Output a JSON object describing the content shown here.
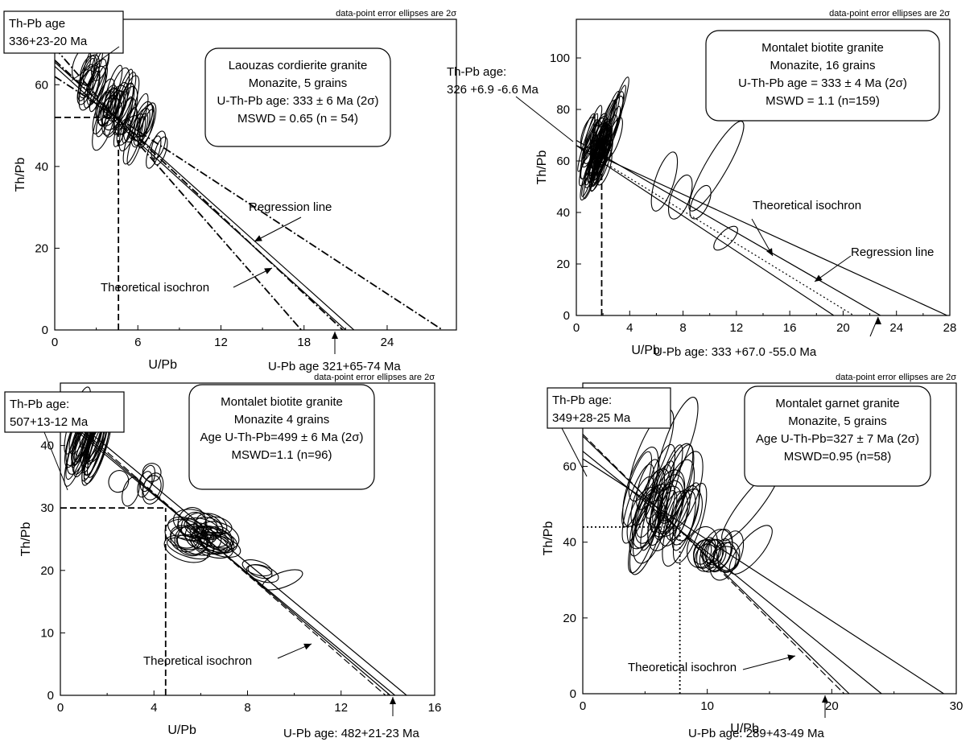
{
  "chart_data": [
    {
      "type": "scatter",
      "ylabel": "Th/Pb",
      "xlabel": "U/Pb",
      "xlim": [
        0,
        29
      ],
      "ylim": [
        0,
        76
      ],
      "xticks": [
        0,
        6,
        12,
        18,
        24
      ],
      "yticks": [
        0,
        20,
        40,
        60
      ],
      "note": "data-point error ellipses are 2σ",
      "info_lines": [
        "Laouzas cordierite granite",
        "Monazite, 5 grains",
        "U-Th-Pb age: 333 ± 6 Ma (2σ)",
        "MSWD = 0.65 (n = 54)"
      ],
      "thpb_label": [
        "Th-Pb age",
        "336+23-20 Ma"
      ],
      "upb_label": "U-Pb age 321+65-74 Ma",
      "line_labels": [
        "Regression line",
        "Theoretical isochron"
      ],
      "lines": [
        {
          "style": "solid",
          "y0": 65.5,
          "xint": 21.6
        },
        {
          "style": "solid",
          "y0": 64.5,
          "xint": 21.0
        },
        {
          "style": "dashdot",
          "y0": 69,
          "xint": 17.8
        },
        {
          "style": "dashdot",
          "y0": 62,
          "xint": 28.0
        },
        {
          "style": "dashdot",
          "y0": 66,
          "xint": 20.8
        }
      ],
      "guides": {
        "style": "dashed",
        "x": 4.6,
        "y": 52
      },
      "clusters": [
        {
          "cx": 2.7,
          "cy": 62,
          "spread_x": 0.8,
          "spread_y": 5,
          "rx": 0.45,
          "ry": 5.5,
          "count": 14
        },
        {
          "cx": 4.5,
          "cy": 55,
          "spread_x": 1.1,
          "spread_y": 6,
          "rx": 0.5,
          "ry": 6,
          "count": 22
        },
        {
          "cx": 5.8,
          "cy": 50,
          "spread_x": 0.9,
          "spread_y": 5,
          "rx": 0.45,
          "ry": 5.5,
          "count": 16
        },
        {
          "cx": 7.3,
          "cy": 44,
          "spread_x": 0.4,
          "spread_y": 2,
          "rx": 0.4,
          "ry": 4.5,
          "count": 3
        }
      ]
    },
    {
      "type": "scatter",
      "ylabel": "Th/Pb",
      "xlabel": "U/Pb",
      "xlim": [
        0,
        28
      ],
      "ylim": [
        0,
        115
      ],
      "xticks": [
        0,
        4,
        8,
        12,
        16,
        20,
        24,
        28
      ],
      "yticks": [
        0,
        20,
        40,
        60,
        80,
        100
      ],
      "note": "data-point error ellipses are 2σ",
      "info_lines": [
        "Montalet biotite granite",
        "Monazite, 16 grains",
        "U-Th-Pb age = 333 ± 4 Ma (2σ)",
        "MSWD = 1.1 (n=159)"
      ],
      "thpb_label": [
        "Th-Pb age:",
        "326 +6.9 -6.6 Ma"
      ],
      "upb_label": "U-Pb age: 333 +67.0 -55.0 Ma",
      "line_labels": [
        "Theoretical isochron",
        "Regression line"
      ],
      "lines": [
        {
          "style": "solid",
          "y0": 68,
          "xint": 22.8
        },
        {
          "style": "solid",
          "y0": 66,
          "xint": 27.8
        },
        {
          "style": "solid",
          "y0": 66,
          "xint": 19.3
        },
        {
          "style": "dotted",
          "y0": 66,
          "xint": 20.8
        }
      ],
      "guides": {
        "style": "dashed",
        "x": 1.9
      },
      "clusters": [
        {
          "cx": 1.5,
          "cy": 65,
          "spread_x": 0.7,
          "spread_y": 12,
          "rx": 0.35,
          "ry": 10,
          "count": 45
        },
        {
          "cx": 2.6,
          "cy": 78,
          "spread_x": 0.5,
          "spread_y": 15,
          "rx": 0.35,
          "ry": 12,
          "count": 10
        }
      ],
      "big_ellipses": [
        {
          "cx": 6.6,
          "cy": 52,
          "rx": 0.7,
          "ry": 12,
          "rot": 18
        },
        {
          "cx": 10.5,
          "cy": 58,
          "rx": 0.8,
          "ry": 20,
          "rot": 30
        },
        {
          "cx": 11.2,
          "cy": 30,
          "rx": 0.5,
          "ry": 6,
          "rot": 45
        },
        {
          "cx": 7.8,
          "cy": 46,
          "rx": 0.7,
          "ry": 9,
          "rot": 20
        },
        {
          "cx": 9.3,
          "cy": 44,
          "rx": 0.6,
          "ry": 7,
          "rot": 25
        }
      ]
    },
    {
      "type": "scatter",
      "ylabel": "Th/Pb",
      "xlabel": "U/Pb",
      "xlim": [
        0,
        16
      ],
      "ylim": [
        0,
        50
      ],
      "xticks": [
        0,
        4,
        8,
        12,
        16
      ],
      "yticks": [
        0,
        10,
        20,
        30,
        40
      ],
      "note": "data-point error ellipses are 2σ",
      "info_lines": [
        "Montalet biotite granite",
        "Monazite 4 grains",
        "Age U-Th-Pb=499 ± 6 Ma (2σ)",
        "MSWD=1.1 (n=96)"
      ],
      "thpb_label": [
        "Th-Pb age:",
        "507+13-12 Ma"
      ],
      "upb_label": "U-Pb age: 482+21-23 Ma",
      "line_labels": [
        "Theoretical isochron"
      ],
      "lines": [
        {
          "style": "solid",
          "y0": 46,
          "xint": 14.8
        },
        {
          "style": "solid",
          "y0": 45,
          "xint": 14.1
        },
        {
          "style": "dashed",
          "y0": 45.5,
          "xint": 13.9
        },
        {
          "style": "solid",
          "y0": 44.5,
          "xint": 14.3
        }
      ],
      "guides": {
        "style": "dashed",
        "x": 4.5,
        "y": 30
      },
      "clusters": [
        {
          "cx": 1.2,
          "cy": 41,
          "spread_x": 0.5,
          "spread_y": 4,
          "rx": 0.28,
          "ry": 5.5,
          "count": 30
        },
        {
          "cx": 6.2,
          "cy": 25.5,
          "spread_x": 0.9,
          "spread_y": 2.5,
          "rx": 0.75,
          "ry": 2.0,
          "count": 32
        },
        {
          "cx": 3.3,
          "cy": 34,
          "spread_x": 0.9,
          "spread_y": 2,
          "rx": 0.35,
          "ry": 2.2,
          "count": 7
        },
        {
          "cx": 8.5,
          "cy": 19.5,
          "spread_x": 0.5,
          "spread_y": 1,
          "rx": 0.7,
          "ry": 1.3,
          "count": 3
        }
      ],
      "big_ellipses": [
        {
          "cx": 9.5,
          "cy": 18.5,
          "rx": 0.9,
          "ry": 1.2,
          "rot": -20
        }
      ]
    },
    {
      "type": "scatter",
      "ylabel": "Th/Pb",
      "xlabel": "U/Pb",
      "xlim": [
        0,
        30
      ],
      "ylim": [
        0,
        82
      ],
      "xticks": [
        0,
        10,
        20,
        30
      ],
      "yticks": [
        0,
        20,
        40,
        60
      ],
      "note": "data-point error ellipses are 2σ",
      "info_lines": [
        "Montalet garnet granite",
        "Monazite, 5 grains",
        "Age U-Th-Pb=327 ± 7 Ma (2σ)",
        "MSWD=0.95 (n=58)"
      ],
      "thpb_label": [
        "Th-Pb age:",
        "349+28-25 Ma"
      ],
      "upb_label": "U-Pb age: 289+43-49 Ma",
      "line_labels": [
        "Theoretical isochron"
      ],
      "lines": [
        {
          "style": "solid",
          "y0": 62,
          "xint": 29
        },
        {
          "style": "solid",
          "y0": 64,
          "xint": 24
        },
        {
          "style": "solid",
          "y0": 68,
          "xint": 21.4
        },
        {
          "style": "dashed",
          "y0": 68.5,
          "xint": 21.0
        }
      ],
      "guides": {
        "style": "dotted",
        "x": 7.8,
        "y": 44
      },
      "clusters": [
        {
          "cx": 6.5,
          "cy": 50,
          "spread_x": 2.2,
          "spread_y": 10,
          "rx": 0.9,
          "ry": 11,
          "count": 34
        },
        {
          "cx": 11,
          "cy": 37,
          "spread_x": 1.4,
          "spread_y": 2.5,
          "rx": 0.9,
          "ry": 5,
          "count": 16
        }
      ],
      "big_ellipses": [
        {
          "cx": 5.5,
          "cy": 63,
          "rx": 1.1,
          "ry": 13,
          "rot": 22
        },
        {
          "cx": 7.6,
          "cy": 66,
          "rx": 1.0,
          "ry": 13,
          "rot": 20
        },
        {
          "cx": 13.5,
          "cy": 50,
          "rx": 0.8,
          "ry": 12,
          "rot": 38
        },
        {
          "cx": 13.5,
          "cy": 38,
          "rx": 0.9,
          "ry": 8,
          "rot": 40
        }
      ]
    }
  ]
}
